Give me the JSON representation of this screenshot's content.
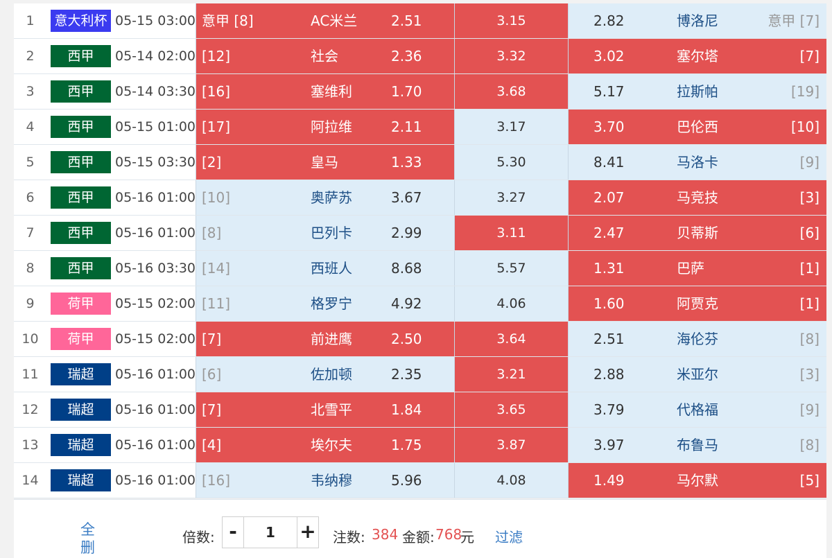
{
  "colors": {
    "selected": "#e35252",
    "unselected": "#deedf8",
    "serie_a": "#3b3bf0",
    "la_liga": "#006633",
    "eredivisie": "#ff6699",
    "swiss": "#003f87"
  },
  "matches": [
    {
      "num": "1",
      "league": "意大利杯",
      "league_color": "#3b3bf0",
      "time": "05-15 03:00",
      "home_rank": "意甲 [8]",
      "home": "AC米兰",
      "home_odds": "2.51",
      "draw_odds": "3.15",
      "away_odds": "2.82",
      "away": "博洛尼",
      "away_rank": "意甲 [7]",
      "sel": [
        true,
        true,
        false
      ]
    },
    {
      "num": "2",
      "league": "西甲",
      "league_color": "#006633",
      "time": "05-14 02:00",
      "home_rank": "[12]",
      "home": "社会",
      "home_odds": "2.36",
      "draw_odds": "3.32",
      "away_odds": "3.02",
      "away": "塞尔塔",
      "away_rank": "[7]",
      "sel": [
        true,
        true,
        true
      ]
    },
    {
      "num": "3",
      "league": "西甲",
      "league_color": "#006633",
      "time": "05-14 03:30",
      "home_rank": "[16]",
      "home": "塞维利",
      "home_odds": "1.70",
      "draw_odds": "3.68",
      "away_odds": "5.17",
      "away": "拉斯帕",
      "away_rank": "[19]",
      "sel": [
        true,
        true,
        false
      ]
    },
    {
      "num": "4",
      "league": "西甲",
      "league_color": "#006633",
      "time": "05-15 01:00",
      "home_rank": "[17]",
      "home": "阿拉维",
      "home_odds": "2.11",
      "draw_odds": "3.17",
      "away_odds": "3.70",
      "away": "巴伦西",
      "away_rank": "[10]",
      "sel": [
        true,
        false,
        true
      ]
    },
    {
      "num": "5",
      "league": "西甲",
      "league_color": "#006633",
      "time": "05-15 03:30",
      "home_rank": "[2]",
      "home": "皇马",
      "home_odds": "1.33",
      "draw_odds": "5.30",
      "away_odds": "8.41",
      "away": "马洛卡",
      "away_rank": "[9]",
      "sel": [
        true,
        false,
        false
      ]
    },
    {
      "num": "6",
      "league": "西甲",
      "league_color": "#006633",
      "time": "05-16 01:00",
      "home_rank": "[10]",
      "home": "奥萨苏",
      "home_odds": "3.67",
      "draw_odds": "3.27",
      "away_odds": "2.07",
      "away": "马竞技",
      "away_rank": "[3]",
      "sel": [
        false,
        false,
        true
      ]
    },
    {
      "num": "7",
      "league": "西甲",
      "league_color": "#006633",
      "time": "05-16 01:00",
      "home_rank": "[8]",
      "home": "巴列卡",
      "home_odds": "2.99",
      "draw_odds": "3.11",
      "away_odds": "2.47",
      "away": "贝蒂斯",
      "away_rank": "[6]",
      "sel": [
        false,
        true,
        true
      ]
    },
    {
      "num": "8",
      "league": "西甲",
      "league_color": "#006633",
      "time": "05-16 03:30",
      "home_rank": "[14]",
      "home": "西班人",
      "home_odds": "8.68",
      "draw_odds": "5.57",
      "away_odds": "1.31",
      "away": "巴萨",
      "away_rank": "[1]",
      "sel": [
        false,
        false,
        true
      ]
    },
    {
      "num": "9",
      "league": "荷甲",
      "league_color": "#ff6699",
      "time": "05-15 02:00",
      "home_rank": "[11]",
      "home": "格罗宁",
      "home_odds": "4.92",
      "draw_odds": "4.06",
      "away_odds": "1.60",
      "away": "阿贾克",
      "away_rank": "[1]",
      "sel": [
        false,
        false,
        true
      ]
    },
    {
      "num": "10",
      "league": "荷甲",
      "league_color": "#ff6699",
      "time": "05-15 02:00",
      "home_rank": "[7]",
      "home": "前进鹰",
      "home_odds": "2.50",
      "draw_odds": "3.64",
      "away_odds": "2.51",
      "away": "海伦芬",
      "away_rank": "[8]",
      "sel": [
        true,
        true,
        false
      ]
    },
    {
      "num": "11",
      "league": "瑞超",
      "league_color": "#003f87",
      "time": "05-16 01:00",
      "home_rank": "[6]",
      "home": "佐加顿",
      "home_odds": "2.35",
      "draw_odds": "3.21",
      "away_odds": "2.88",
      "away": "米亚尔",
      "away_rank": "[3]",
      "sel": [
        false,
        true,
        false
      ]
    },
    {
      "num": "12",
      "league": "瑞超",
      "league_color": "#003f87",
      "time": "05-16 01:00",
      "home_rank": "[7]",
      "home": "北雪平",
      "home_odds": "1.84",
      "draw_odds": "3.65",
      "away_odds": "3.79",
      "away": "代格福",
      "away_rank": "[9]",
      "sel": [
        true,
        true,
        false
      ]
    },
    {
      "num": "13",
      "league": "瑞超",
      "league_color": "#003f87",
      "time": "05-16 01:00",
      "home_rank": "[4]",
      "home": "埃尔夫",
      "home_odds": "1.75",
      "draw_odds": "3.87",
      "away_odds": "3.97",
      "away": "布鲁马",
      "away_rank": "[8]",
      "sel": [
        true,
        true,
        false
      ]
    },
    {
      "num": "14",
      "league": "瑞超",
      "league_color": "#003f87",
      "time": "05-16 01:00",
      "home_rank": "[16]",
      "home": "韦纳穆",
      "home_odds": "5.96",
      "draw_odds": "4.08",
      "away_odds": "1.49",
      "away": "马尔默",
      "away_rank": "[5]",
      "sel": [
        false,
        false,
        true
      ]
    }
  ],
  "footer": {
    "clear_all": "全删",
    "multiplier_label": "倍数:",
    "minus": "-",
    "plus": "+",
    "multiplier_value": "1",
    "bets_label": "注数:",
    "bets_value": "384",
    "amount_label": "金额:",
    "amount_value": "768",
    "amount_unit": "元",
    "filter": "过滤"
  }
}
